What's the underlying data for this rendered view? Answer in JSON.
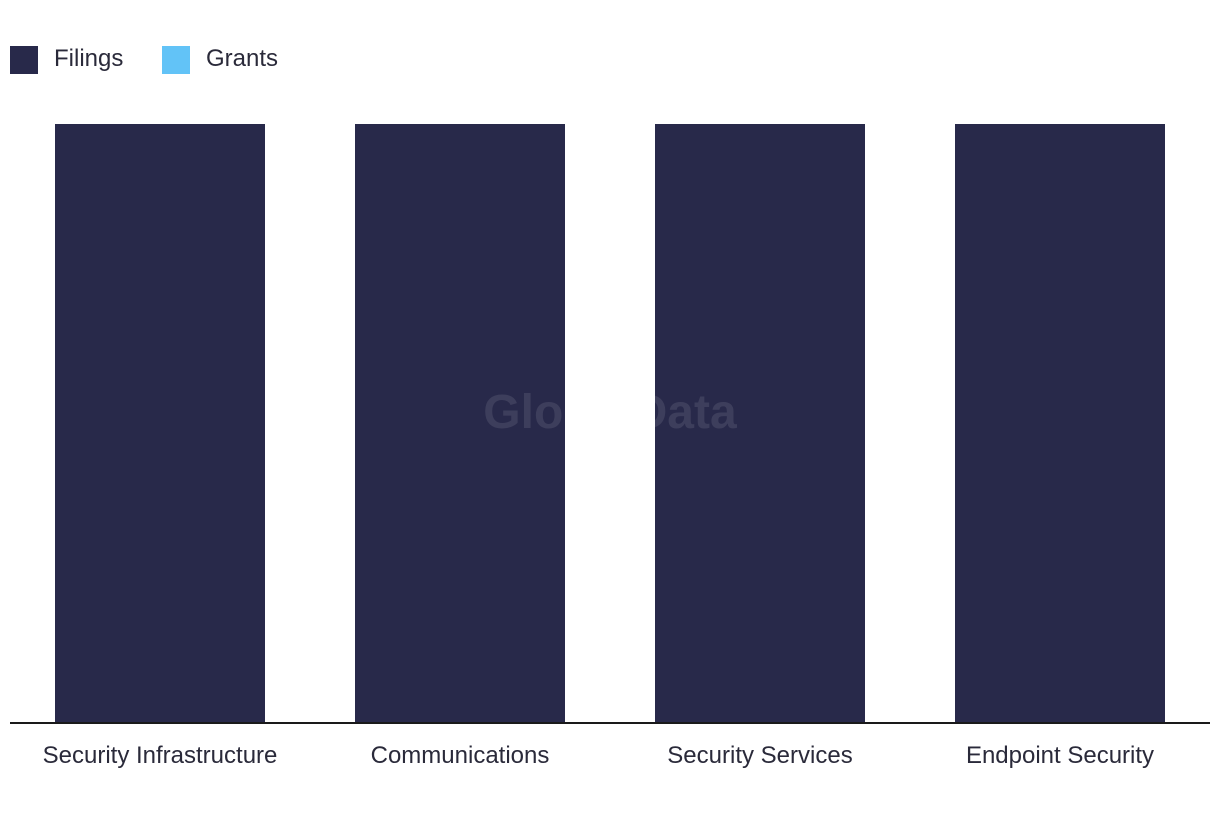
{
  "chart_data": {
    "type": "bar",
    "categories": [
      "Security Infrastructure",
      "Communications",
      "Security Services",
      "Endpoint Security"
    ],
    "series": [
      {
        "name": "Filings",
        "values": [
          1,
          1,
          1,
          1
        ],
        "color": "#28294a"
      },
      {
        "name": "Grants",
        "values": [
          0,
          0,
          0,
          0
        ],
        "color": "#62c3f7"
      }
    ],
    "ylim": [
      0,
      1
    ],
    "grid": false,
    "legend_position": "top-left",
    "watermark": "GlobalData"
  }
}
